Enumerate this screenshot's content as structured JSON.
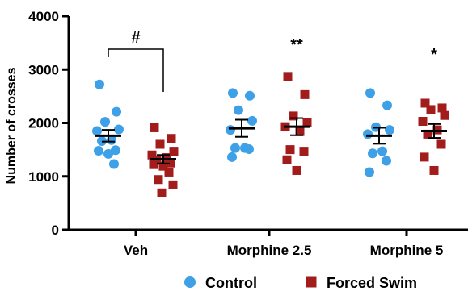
{
  "chart_data": {
    "type": "scatter",
    "title": "",
    "ylabel": "Number of crosses",
    "xlabel": "",
    "ylim": [
      0,
      4000
    ],
    "yticks": [
      "0",
      "1000",
      "2000",
      "3000",
      "4000"
    ],
    "categories": [
      "Veh",
      "Morphine 2.5",
      "Morphine 5"
    ],
    "legend_position": "bottom",
    "series": [
      {
        "name": "Control",
        "color": "#3ea0e6",
        "marker": "circle",
        "groups": [
          {
            "values": [
              2720,
              2210,
              2020,
              1880,
              1850,
              1680,
              1660,
              1490,
              1480,
              1420,
              1230
            ],
            "mean": 1760,
            "sem": 110
          },
          {
            "values": [
              2560,
              2510,
              2240,
              2040,
              1870,
              1530,
              1530,
              1510,
              1360
            ],
            "mean": 1900,
            "sem": 160
          },
          {
            "values": [
              2560,
              2330,
              1920,
              1870,
              1790,
              1470,
              1430,
              1290,
              1080
            ],
            "mean": 1760,
            "sem": 150
          }
        ]
      },
      {
        "name": "Forced Swim",
        "color": "#a31c1c",
        "marker": "square",
        "groups": [
          {
            "values": [
              1910,
              1710,
              1600,
              1470,
              1400,
              1350,
              1300,
              1250,
              1220,
              1190,
              1080,
              940,
              840,
              690
            ],
            "mean": 1320,
            "sem": 80
          },
          {
            "values": [
              2870,
              2530,
              2130,
              2010,
              1930,
              1840,
              1500,
              1470,
              1310,
              1110
            ],
            "mean": 1930,
            "sem": 160
          },
          {
            "values": [
              2370,
              2280,
              2250,
              2140,
              2030,
              1870,
              1790,
              1600,
              1360,
              1110
            ],
            "mean": 1850,
            "sem": 130
          }
        ]
      }
    ],
    "annotations": [
      {
        "text": "#",
        "type": "bracket",
        "between": [
          "Veh:Control",
          "Veh:Forced Swim"
        ]
      },
      {
        "text": "**",
        "above": "Morphine 2.5:Forced Swim"
      },
      {
        "text": "*",
        "above": "Morphine 5:Forced Swim"
      }
    ]
  }
}
